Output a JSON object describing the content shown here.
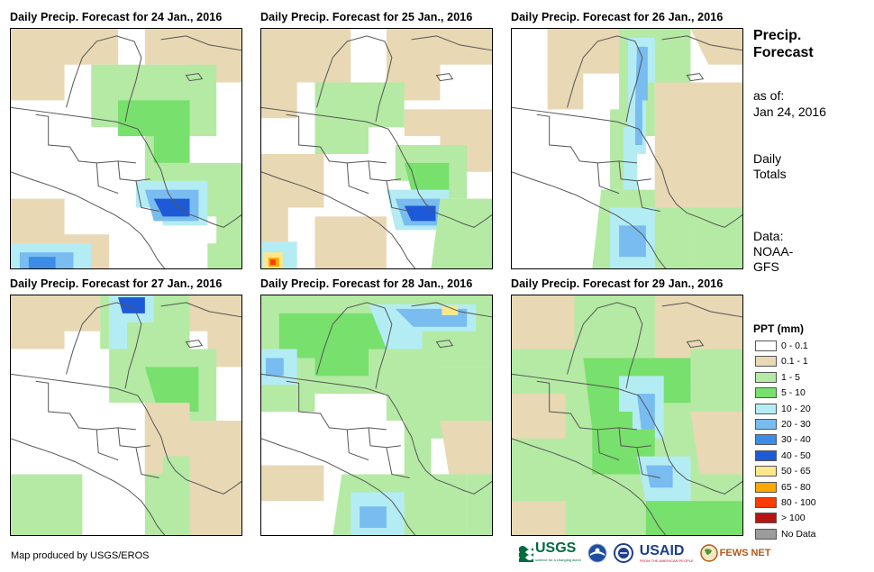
{
  "panels": [
    {
      "title": "Daily Precip. Forecast for 24 Jan., 2016"
    },
    {
      "title": "Daily Precip. Forecast for 25 Jan., 2016"
    },
    {
      "title": "Daily Precip. Forecast for 26 Jan., 2016"
    },
    {
      "title": "Daily Precip. Forecast for 27 Jan., 2016"
    },
    {
      "title": "Daily Precip. Forecast for 28 Jan., 2016"
    },
    {
      "title": "Daily Precip. Forecast for 29 Jan., 2016"
    }
  ],
  "sidebar": {
    "title_line1": "Precip.",
    "title_line2": "Forecast",
    "asof_label": "as of:",
    "asof_date": "Jan 24, 2016",
    "totals_line1": "Daily",
    "totals_line2": "Totals",
    "source_line1": "Data:",
    "source_line2": "NOAA-",
    "source_line3": "GFS"
  },
  "legend": {
    "title": "PPT (mm)",
    "items": [
      {
        "label": "0 - 0.1",
        "color": "#ffffff"
      },
      {
        "label": "0.1 - 1",
        "color": "#e8d8b4"
      },
      {
        "label": "1 - 5",
        "color": "#b4eaa4"
      },
      {
        "label": "5 - 10",
        "color": "#78e06c"
      },
      {
        "label": "10 - 20",
        "color": "#b4ecf4"
      },
      {
        "label": "20 - 30",
        "color": "#78bcf0"
      },
      {
        "label": "30 - 40",
        "color": "#3c8ce8"
      },
      {
        "label": "40 - 50",
        "color": "#1e5ad8"
      },
      {
        "label": "50 - 65",
        "color": "#fce88c"
      },
      {
        "label": "65 - 80",
        "color": "#fca800"
      },
      {
        "label": "80 - 100",
        "color": "#fc3c00"
      },
      {
        "label": "> 100",
        "color": "#b41414"
      },
      {
        "label": "No Data",
        "color": "#9c9c9c"
      }
    ]
  },
  "credit": "Map produced by USGS/EROS",
  "logos": {
    "usgs": "USGS",
    "usgs_tagline": "science for a changing world",
    "usaid": "USAID",
    "usaid_tagline": "FROM THE AMERICAN PEOPLE",
    "fewsnet": "FEWS NET"
  }
}
